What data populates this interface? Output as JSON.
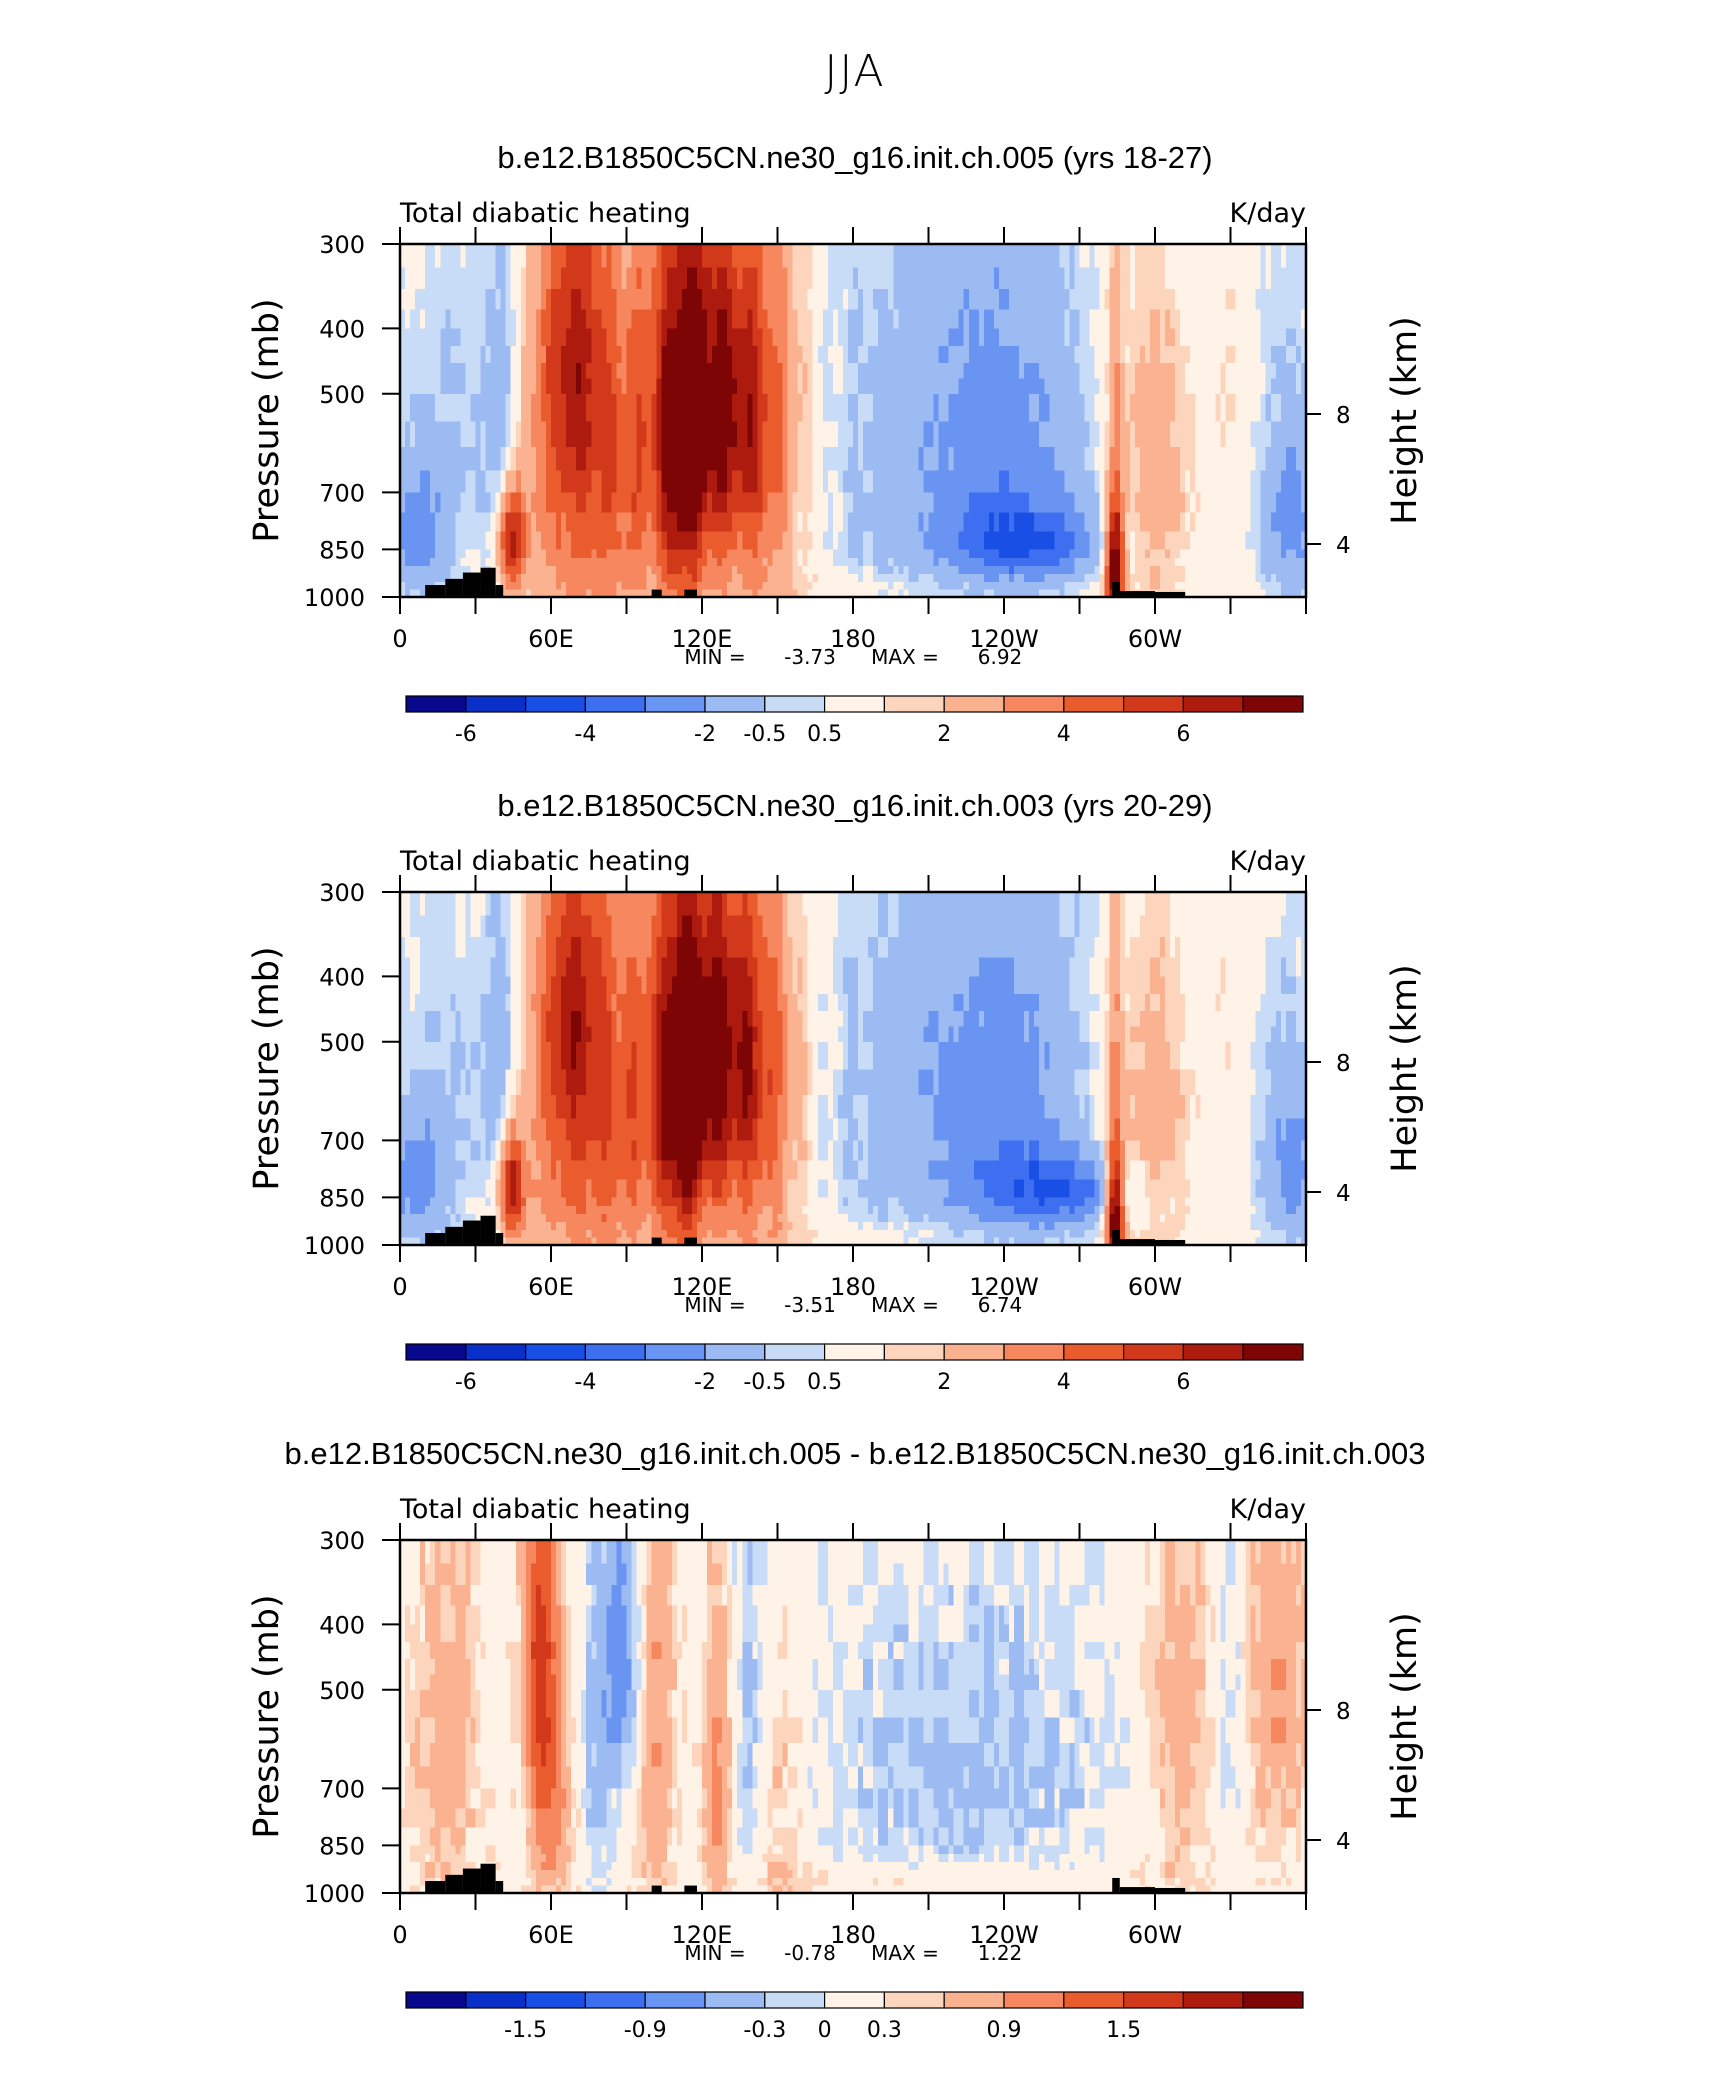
{
  "figure": {
    "title": "JJA",
    "left_axis_label": "Pressure (mb)",
    "right_axis_label": "Height (km)"
  },
  "chart_data": [
    {
      "type": "heatmap",
      "title": "b.e12.B1850C5CN.ne30_g16.init.ch.005 (yrs 18-27)",
      "subtitle_left": "Total diabatic heating",
      "subtitle_right": "K/day",
      "ylabel": "Pressure (mb)",
      "ylabel_right": "Height (km)",
      "y_ticks": [
        "300",
        "400",
        "500",
        "700",
        "850",
        "1000"
      ],
      "y_right_ticks": [
        "8",
        "4"
      ],
      "x_ticks": [
        "0",
        "60E",
        "120E",
        "180",
        "120W",
        "60W"
      ],
      "min_label": "MIN =",
      "min_value": "-3.73",
      "max_label": "MAX =",
      "max_value": "6.92",
      "colorbar_labels": [
        "-6",
        "-4",
        "-2",
        "-0.5",
        "0.5",
        "2",
        "4",
        "6"
      ],
      "colorbar_colors": [
        "#08088c",
        "#0a2fc8",
        "#1a4fe6",
        "#3d6ff0",
        "#6a94f2",
        "#9dbbf3",
        "#c9dcf7",
        "#fff2e6",
        "#fdd5bd",
        "#fbb290",
        "#f6875f",
        "#ea5b2e",
        "#d2381a",
        "#ad1a0e",
        "#7d0505"
      ],
      "features": [
        {
          "name": "indian-monsoon-heating",
          "lon": 75,
          "level": 400,
          "value": 4.5
        },
        {
          "name": "east-asian-heating",
          "lon": 135,
          "level": 520,
          "value": 6.9
        },
        {
          "name": "central-pacific-cooling",
          "lon": 225,
          "level": 820,
          "value": -3.7
        },
        {
          "name": "andes-heating-column",
          "lon": 285,
          "level": 900,
          "value": 6.5
        }
      ]
    },
    {
      "type": "heatmap",
      "title": "b.e12.B1850C5CN.ne30_g16.init.ch.003 (yrs 20-29)",
      "subtitle_left": "Total diabatic heating",
      "subtitle_right": "K/day",
      "ylabel": "Pressure (mb)",
      "ylabel_right": "Height (km)",
      "y_ticks": [
        "300",
        "400",
        "500",
        "700",
        "850",
        "1000"
      ],
      "y_right_ticks": [
        "8",
        "4"
      ],
      "x_ticks": [
        "0",
        "60E",
        "120E",
        "180",
        "120W",
        "60W"
      ],
      "min_label": "MIN =",
      "min_value": "-3.51",
      "max_label": "MAX =",
      "max_value": "6.74",
      "colorbar_labels": [
        "-6",
        "-4",
        "-2",
        "-0.5",
        "0.5",
        "2",
        "4",
        "6"
      ],
      "colorbar_colors": [
        "#08088c",
        "#0a2fc8",
        "#1a4fe6",
        "#3d6ff0",
        "#6a94f2",
        "#9dbbf3",
        "#c9dcf7",
        "#fff2e6",
        "#fdd5bd",
        "#fbb290",
        "#f6875f",
        "#ea5b2e",
        "#d2381a",
        "#ad1a0e",
        "#7d0505"
      ],
      "features": [
        {
          "name": "indian-monsoon-heating",
          "lon": 65,
          "level": 400,
          "value": 4.3
        },
        {
          "name": "east-asian-heating",
          "lon": 135,
          "level": 520,
          "value": 6.7
        },
        {
          "name": "central-pacific-cooling",
          "lon": 255,
          "level": 850,
          "value": -3.5
        },
        {
          "name": "andes-heating-column",
          "lon": 285,
          "level": 900,
          "value": 6.3
        }
      ]
    },
    {
      "type": "heatmap",
      "title": "b.e12.B1850C5CN.ne30_g16.init.ch.005 - b.e12.B1850C5CN.ne30_g16.init.ch.003",
      "subtitle_left": "Total diabatic heating",
      "subtitle_right": "K/day",
      "ylabel": "Pressure (mb)",
      "ylabel_right": "Height (km)",
      "y_ticks": [
        "300",
        "400",
        "500",
        "700",
        "850",
        "1000"
      ],
      "y_right_ticks": [
        "8",
        "4"
      ],
      "x_ticks": [
        "0",
        "60E",
        "120E",
        "180",
        "120W",
        "60W"
      ],
      "min_label": "MIN =",
      "min_value": "-0.78",
      "max_label": "MAX =",
      "max_value": "1.22",
      "colorbar_labels": [
        "-1.5",
        "-0.9",
        "-0.3",
        "0",
        "0.3",
        "0.9",
        "1.5"
      ],
      "colorbar_colors": [
        "#08088c",
        "#0a2fc8",
        "#1a4fe6",
        "#3d6ff0",
        "#6a94f2",
        "#9dbbf3",
        "#c9dcf7",
        "#fff2e6",
        "#fdd5bd",
        "#fbb290",
        "#f6875f",
        "#ea5b2e",
        "#d2381a",
        "#ad1a0e",
        "#7d0505"
      ],
      "features": [
        {
          "name": "arabian-sea-heating-diff",
          "lon": 55,
          "level": 350,
          "value": 1.2
        },
        {
          "name": "bay-of-bengal-cooling-diff",
          "lon": 88,
          "level": 450,
          "value": -0.78
        },
        {
          "name": "pacific-cooling-diff",
          "lon": 210,
          "level": 650,
          "value": -0.3
        }
      ]
    }
  ]
}
